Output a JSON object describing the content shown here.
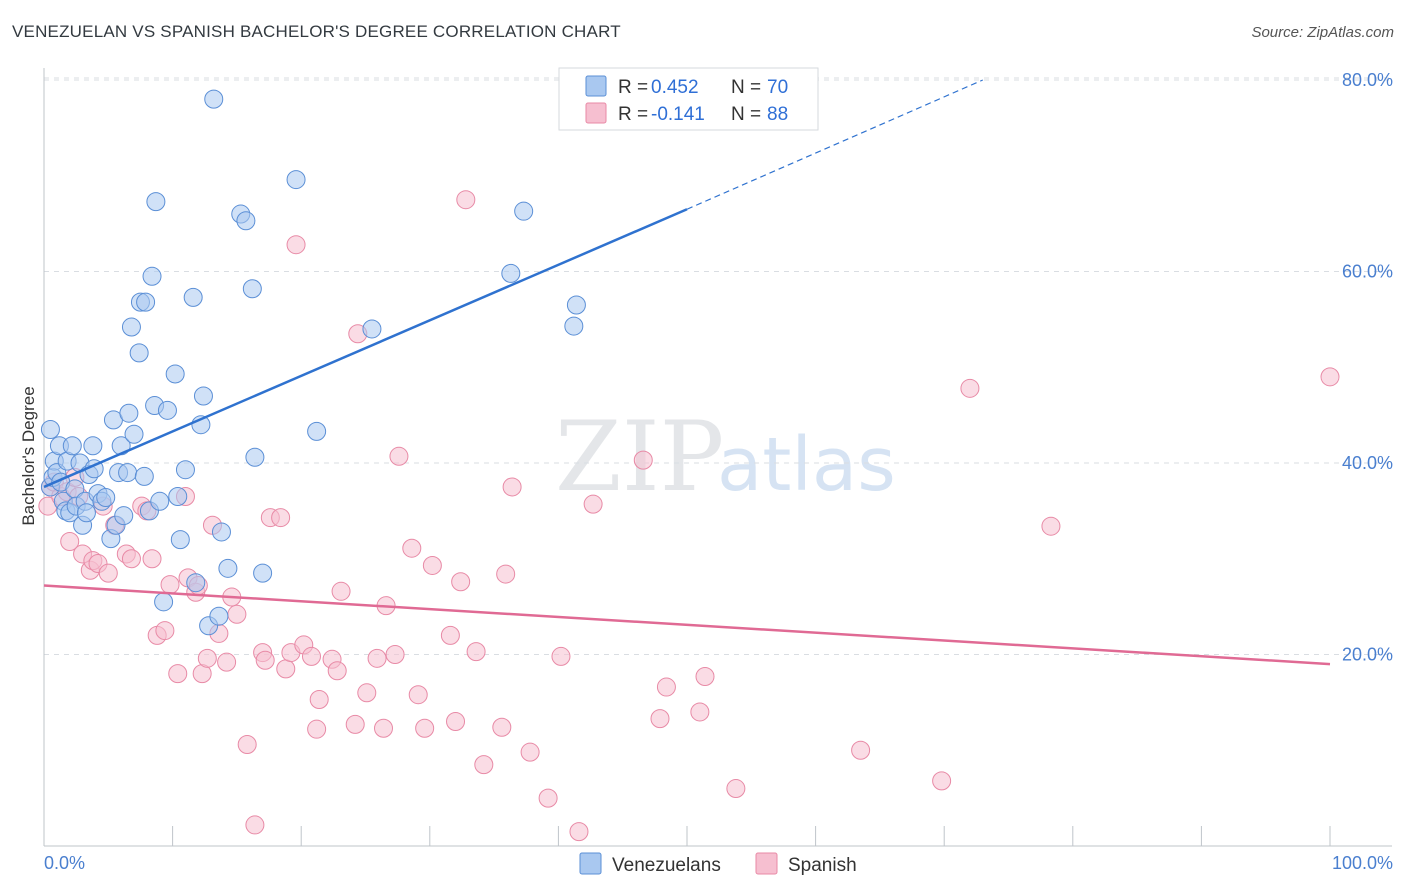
{
  "header": {
    "title": "VENEZUELAN VS SPANISH BACHELOR'S DEGREE CORRELATION CHART",
    "source": "Source: ZipAtlas.com"
  },
  "watermark": {
    "part1": "ZIP",
    "part2": "atlas"
  },
  "legend": {
    "venezuelans": {
      "r_label": "R = ",
      "r_value": "0.452",
      "n_label": "N = ",
      "n_value": "70"
    },
    "spanish": {
      "r_label": "R = ",
      "r_value": "-0.141",
      "n_label": "N = ",
      "n_value": "88"
    }
  },
  "bottom_legend": {
    "venezuelans": "Venezuelans",
    "spanish": "Spanish"
  },
  "colors": {
    "blue_fill": "#a9c8f0",
    "blue_stroke": "#5b8fd6",
    "blue_line": "#2f72cf",
    "pink_fill": "#f6bfd0",
    "pink_stroke": "#e88aa6",
    "pink_line": "#e06a94",
    "grid": "#d9dde2"
  },
  "chart_data": {
    "type": "scatter",
    "title": "VENEZUELAN VS SPANISH BACHELOR'S DEGREE CORRELATION CHART",
    "xlabel": "",
    "ylabel": "Bachelor's Degree",
    "xlim": [
      0,
      100
    ],
    "ylim": [
      0,
      81
    ],
    "x_tick_labels": [
      "0.0%",
      "100.0%"
    ],
    "y_ticks": [
      20,
      40,
      60,
      80
    ],
    "y_tick_labels": [
      "20.0%",
      "40.0%",
      "60.0%",
      "80.0%"
    ],
    "series": [
      {
        "name": "Venezuelans",
        "r": 0.452,
        "n": 70,
        "trend": {
          "x0": 0,
          "y0": 37.5,
          "x1": 50,
          "y1": 66.5,
          "x_dashed_end": 73,
          "y_dashed_end": 80
        },
        "points": [
          [
            0.5,
            43.5
          ],
          [
            0.5,
            37.5
          ],
          [
            0.7,
            38.5
          ],
          [
            0.8,
            40.2
          ],
          [
            1.0,
            39.0
          ],
          [
            1.2,
            41.8
          ],
          [
            1.3,
            38.0
          ],
          [
            1.5,
            36.0
          ],
          [
            1.7,
            35.0
          ],
          [
            1.8,
            40.2
          ],
          [
            2.0,
            34.8
          ],
          [
            2.2,
            41.8
          ],
          [
            2.4,
            37.3
          ],
          [
            2.5,
            35.5
          ],
          [
            2.8,
            40.0
          ],
          [
            3.0,
            33.5
          ],
          [
            3.2,
            36.0
          ],
          [
            3.3,
            34.8
          ],
          [
            3.5,
            38.8
          ],
          [
            3.8,
            41.8
          ],
          [
            3.9,
            39.4
          ],
          [
            4.2,
            36.8
          ],
          [
            4.5,
            36.0
          ],
          [
            4.8,
            36.4
          ],
          [
            5.2,
            32.1
          ],
          [
            5.4,
            44.5
          ],
          [
            5.6,
            33.5
          ],
          [
            5.8,
            39.0
          ],
          [
            6.0,
            41.8
          ],
          [
            6.2,
            34.5
          ],
          [
            6.5,
            39.0
          ],
          [
            6.6,
            45.2
          ],
          [
            6.8,
            54.2
          ],
          [
            7.0,
            43.0
          ],
          [
            7.4,
            51.5
          ],
          [
            7.5,
            56.8
          ],
          [
            7.8,
            38.6
          ],
          [
            7.9,
            56.8
          ],
          [
            8.2,
            35.0
          ],
          [
            8.4,
            59.5
          ],
          [
            8.6,
            46.0
          ],
          [
            8.7,
            67.3
          ],
          [
            9.0,
            36.0
          ],
          [
            9.3,
            25.5
          ],
          [
            9.6,
            45.5
          ],
          [
            10.2,
            49.3
          ],
          [
            10.4,
            36.5
          ],
          [
            10.6,
            32.0
          ],
          [
            11.0,
            39.3
          ],
          [
            11.6,
            57.3
          ],
          [
            11.8,
            27.5
          ],
          [
            12.2,
            44.0
          ],
          [
            12.4,
            47.0
          ],
          [
            12.8,
            23.0
          ],
          [
            13.2,
            78.0
          ],
          [
            13.6,
            24.0
          ],
          [
            13.8,
            32.8
          ],
          [
            14.3,
            29.0
          ],
          [
            15.3,
            66.0
          ],
          [
            15.7,
            65.3
          ],
          [
            16.2,
            58.2
          ],
          [
            16.4,
            40.6
          ],
          [
            17.0,
            28.5
          ],
          [
            19.6,
            69.6
          ],
          [
            21.2,
            43.3
          ],
          [
            25.5,
            54.0
          ],
          [
            36.3,
            59.8
          ],
          [
            37.3,
            66.3
          ],
          [
            41.2,
            54.3
          ],
          [
            41.4,
            56.5
          ]
        ]
      },
      {
        "name": "Spanish",
        "r": -0.141,
        "n": 88,
        "trend": {
          "x0": 0,
          "y0": 27.2,
          "x1": 100,
          "y1": 19.0
        },
        "points": [
          [
            0.3,
            35.5
          ],
          [
            0.5,
            37.5
          ],
          [
            0.8,
            38.0
          ],
          [
            1.3,
            36.5
          ],
          [
            1.8,
            37.0
          ],
          [
            2.0,
            31.8
          ],
          [
            2.4,
            38.5
          ],
          [
            2.7,
            36.5
          ],
          [
            3.0,
            30.5
          ],
          [
            3.6,
            28.8
          ],
          [
            3.8,
            29.8
          ],
          [
            4.2,
            29.5
          ],
          [
            4.6,
            35.5
          ],
          [
            5.0,
            28.5
          ],
          [
            5.5,
            33.5
          ],
          [
            6.4,
            30.5
          ],
          [
            6.8,
            30.0
          ],
          [
            7.6,
            35.5
          ],
          [
            8.0,
            35.0
          ],
          [
            8.4,
            30.0
          ],
          [
            8.8,
            22.0
          ],
          [
            9.4,
            22.5
          ],
          [
            9.8,
            27.3
          ],
          [
            10.4,
            18.0
          ],
          [
            11.0,
            36.5
          ],
          [
            11.2,
            28.0
          ],
          [
            11.8,
            26.5
          ],
          [
            12.0,
            27.2
          ],
          [
            12.3,
            18.0
          ],
          [
            12.7,
            19.6
          ],
          [
            13.1,
            33.5
          ],
          [
            13.6,
            22.2
          ],
          [
            14.2,
            19.2
          ],
          [
            14.6,
            26.0
          ],
          [
            15.0,
            24.2
          ],
          [
            15.8,
            10.6
          ],
          [
            16.4,
            2.2
          ],
          [
            17.0,
            20.2
          ],
          [
            17.2,
            19.4
          ],
          [
            17.6,
            34.3
          ],
          [
            18.4,
            34.3
          ],
          [
            18.8,
            18.5
          ],
          [
            19.2,
            20.2
          ],
          [
            19.6,
            62.8
          ],
          [
            20.2,
            21.0
          ],
          [
            20.8,
            19.8
          ],
          [
            21.2,
            12.2
          ],
          [
            21.4,
            15.3
          ],
          [
            22.4,
            19.5
          ],
          [
            22.8,
            18.3
          ],
          [
            23.1,
            26.6
          ],
          [
            24.2,
            12.7
          ],
          [
            24.4,
            53.5
          ],
          [
            25.1,
            16.0
          ],
          [
            25.9,
            19.6
          ],
          [
            26.4,
            12.3
          ],
          [
            26.6,
            25.1
          ],
          [
            27.3,
            20.0
          ],
          [
            27.6,
            40.7
          ],
          [
            28.6,
            31.1
          ],
          [
            29.1,
            15.8
          ],
          [
            29.6,
            12.3
          ],
          [
            30.2,
            29.3
          ],
          [
            31.6,
            22.0
          ],
          [
            32.0,
            13.0
          ],
          [
            32.4,
            27.6
          ],
          [
            32.8,
            67.5
          ],
          [
            33.6,
            20.3
          ],
          [
            34.2,
            8.5
          ],
          [
            35.6,
            12.4
          ],
          [
            35.9,
            28.4
          ],
          [
            36.4,
            37.5
          ],
          [
            37.8,
            9.8
          ],
          [
            39.2,
            5.0
          ],
          [
            40.2,
            19.8
          ],
          [
            41.6,
            1.5
          ],
          [
            42.7,
            35.7
          ],
          [
            46.6,
            40.3
          ],
          [
            47.9,
            13.3
          ],
          [
            48.4,
            16.6
          ],
          [
            51.0,
            14.0
          ],
          [
            51.4,
            17.7
          ],
          [
            53.8,
            6.0
          ],
          [
            63.5,
            10.0
          ],
          [
            69.8,
            6.8
          ],
          [
            72.0,
            47.8
          ],
          [
            78.3,
            33.4
          ],
          [
            100.0,
            49.0
          ]
        ]
      }
    ]
  }
}
